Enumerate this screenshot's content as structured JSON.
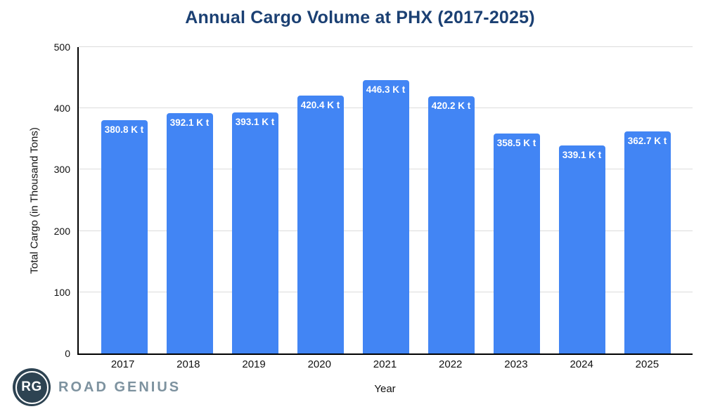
{
  "title": "Annual Cargo Volume at PHX (2017-2025)",
  "chart_data": {
    "type": "bar",
    "title": "Annual Cargo Volume at PHX (2017-2025)",
    "categories": [
      "2017",
      "2018",
      "2019",
      "2020",
      "2021",
      "2022",
      "2023",
      "2024",
      "2025"
    ],
    "values": [
      380.8,
      392.1,
      393.1,
      420.4,
      446.3,
      420.2,
      358.5,
      339.1,
      362.7
    ],
    "bar_labels": [
      "380.8 K t",
      "392.1 K t",
      "393.1 K t",
      "420.4 K t",
      "446.3 K t",
      "420.2 K t",
      "358.5 K t",
      "339.1 K t",
      "362.7 K t"
    ],
    "xlabel": "Year",
    "ylabel": "Total Cargo (in Thousand Tons)",
    "ylim": [
      0,
      500
    ],
    "yticks": [
      0,
      100,
      200,
      300,
      400,
      500
    ],
    "grid": true,
    "legend": "none",
    "bar_color": "#4285f4",
    "bar_label_color": "#ffffff"
  },
  "colors": {
    "title": "#1b4073",
    "bar": "#4285f4",
    "grid": "#dcdcdc",
    "axis": "#000000",
    "tick_text": "#111111",
    "logo_bg": "#2d4352",
    "logo_brand": "#7d929f"
  },
  "logo": {
    "monogram": "RG",
    "brand": "ROAD GENIUS"
  }
}
